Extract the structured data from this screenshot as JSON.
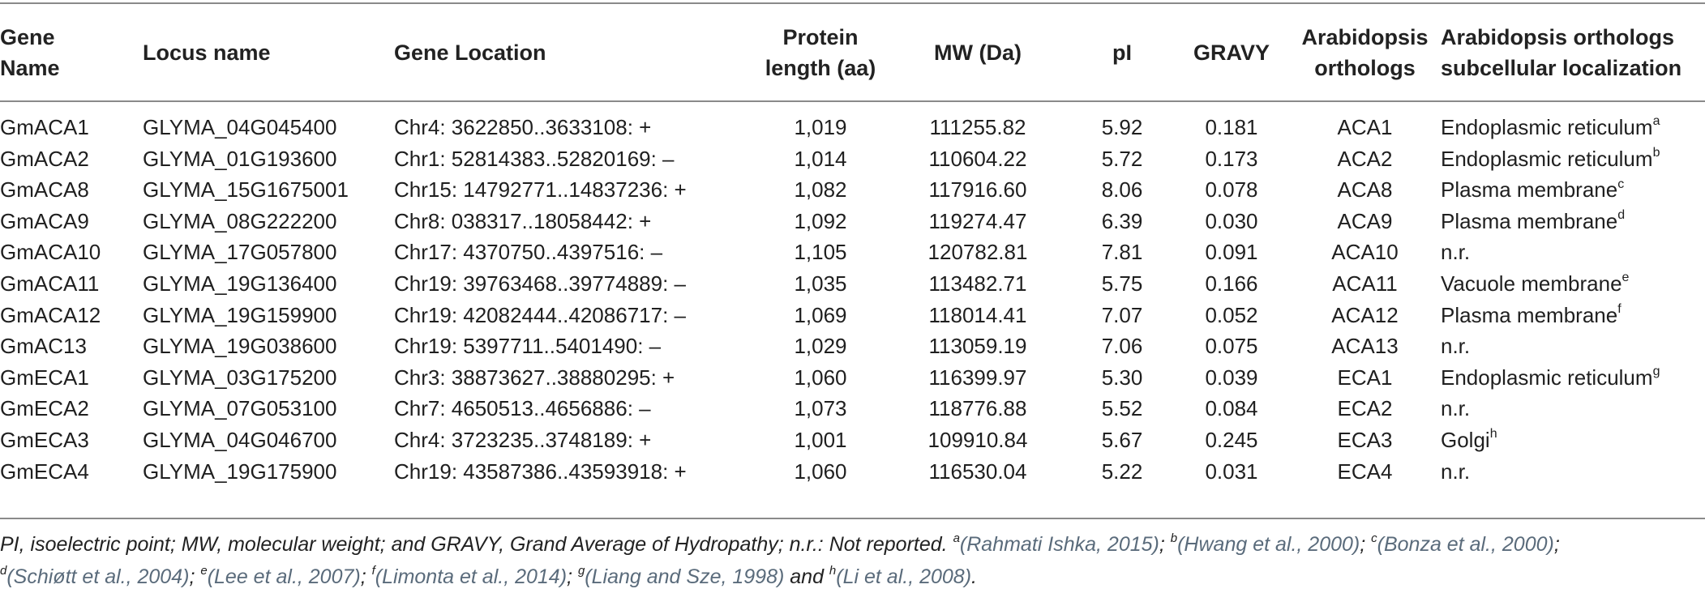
{
  "headers": {
    "gene_name": [
      "Gene",
      "Name"
    ],
    "locus": [
      "Locus name"
    ],
    "location": [
      "Gene Location"
    ],
    "length": [
      "Protein",
      "length (aa)"
    ],
    "mw": [
      "MW (Da)"
    ],
    "pi": [
      "pI"
    ],
    "gravy": [
      "GRAVY"
    ],
    "orthologs": [
      "Arabidopsis",
      "orthologs"
    ],
    "localization": [
      "Arabidopsis orthologs",
      "subcellular localization"
    ]
  },
  "rows": [
    {
      "gene": "GmACA1",
      "locus": "GLYMA_04G045400",
      "location": "Chr4: 3622850..3633108: +",
      "length": "1,019",
      "mw": "111255.82",
      "pi": "5.92",
      "gravy": "0.181",
      "ortholog": "ACA1",
      "localization": "Endoplasmic reticulum",
      "sup": "a"
    },
    {
      "gene": "GmACA2",
      "locus": "GLYMA_01G193600",
      "location": "Chr1: 52814383..52820169: –",
      "length": "1,014",
      "mw": "110604.22",
      "pi": "5.72",
      "gravy": "0.173",
      "ortholog": "ACA2",
      "localization": "Endoplasmic reticulum",
      "sup": "b"
    },
    {
      "gene": "GmACA8",
      "locus": "GLYMA_15G1675001",
      "location": "Chr15: 14792771..14837236: +",
      "length": "1,082",
      "mw": "117916.60",
      "pi": "8.06",
      "gravy": "0.078",
      "ortholog": "ACA8",
      "localization": "Plasma membrane",
      "sup": "c"
    },
    {
      "gene": "GmACA9",
      "locus": "GLYMA_08G222200",
      "location": "Chr8: 038317..18058442: +",
      "length": "1,092",
      "mw": "119274.47",
      "pi": "6.39",
      "gravy": "0.030",
      "ortholog": "ACA9",
      "localization": "Plasma membrane",
      "sup": "d"
    },
    {
      "gene": "GmACA10",
      "locus": "GLYMA_17G057800",
      "location": "Chr17: 4370750..4397516: –",
      "length": "1,105",
      "mw": "120782.81",
      "pi": "7.81",
      "gravy": "0.091",
      "ortholog": "ACA10",
      "localization": "n.r.",
      "sup": ""
    },
    {
      "gene": "GmACA11",
      "locus": "GLYMA_19G136400",
      "location": "Chr19: 39763468..39774889: –",
      "length": "1,035",
      "mw": "113482.71",
      "pi": "5.75",
      "gravy": "0.166",
      "ortholog": "ACA11",
      "localization": "Vacuole membrane",
      "sup": "e"
    },
    {
      "gene": "GmACA12",
      "locus": "GLYMA_19G159900",
      "location": "Chr19: 42082444..42086717: –",
      "length": "1,069",
      "mw": "118014.41",
      "pi": "7.07",
      "gravy": "0.052",
      "ortholog": "ACA12",
      "localization": "Plasma membrane",
      "sup": "f"
    },
    {
      "gene": "GmAC13",
      "locus": "GLYMA_19G038600",
      "location": "Chr19: 5397711..5401490: –",
      "length": "1,029",
      "mw": "113059.19",
      "pi": "7.06",
      "gravy": "0.075",
      "ortholog": "ACA13",
      "localization": "n.r.",
      "sup": ""
    },
    {
      "gene": "GmECA1",
      "locus": "GLYMA_03G175200",
      "location": "Chr3: 38873627..38880295: +",
      "length": "1,060",
      "mw": "116399.97",
      "pi": "5.30",
      "gravy": "0.039",
      "ortholog": "ECA1",
      "localization": "Endoplasmic reticulum",
      "sup": "g"
    },
    {
      "gene": "GmECA2",
      "locus": "GLYMA_07G053100",
      "location": "Chr7: 4650513..4656886: –",
      "length": "1,073",
      "mw": "118776.88",
      "pi": "5.52",
      "gravy": "0.084",
      "ortholog": "ECA2",
      "localization": "n.r.",
      "sup": ""
    },
    {
      "gene": "GmECA3",
      "locus": "GLYMA_04G046700",
      "location": "Chr4: 3723235..3748189: +",
      "length": "1,001",
      "mw": "109910.84",
      "pi": "5.67",
      "gravy": "0.245",
      "ortholog": "ECA3",
      "localization": "Golgi",
      "sup": "h"
    },
    {
      "gene": "GmECA4",
      "locus": "GLYMA_19G175900",
      "location": "Chr19: 43587386..43593918: +",
      "length": "1,060",
      "mw": "116530.04",
      "pi": "5.22",
      "gravy": "0.031",
      "ortholog": "ECA4",
      "localization": "n.r.",
      "sup": ""
    }
  ],
  "footnote": {
    "intro": "PI, isoelectric point; MW, molecular weight; and GRAVY, Grand Average of Hydropathy; n.r.: Not reported. ",
    "refs": [
      {
        "sup": "a",
        "text": "(Rahmati Ishka, 2015)",
        "after": "; "
      },
      {
        "sup": "b",
        "text": "(Hwang et al., 2000)",
        "after": "; "
      },
      {
        "sup": "c",
        "text": "(Bonza et al., 2000)",
        "after": ";",
        "break": true
      },
      {
        "sup": "d",
        "text": "(Schiøtt et al., 2004)",
        "after": "; "
      },
      {
        "sup": "e",
        "text": "(Lee et al., 2007)",
        "after": "; "
      },
      {
        "sup": "f",
        "text": "(Limonta et al., 2014)",
        "after": "; "
      },
      {
        "sup": "g",
        "text": "(Liang and Sze, 1998)",
        "after": " and "
      },
      {
        "sup": "h",
        "text": "(Li et al., 2008)",
        "after": "."
      }
    ]
  },
  "colors": {
    "rule": "#8a8a8a",
    "text": "#1f1f1f",
    "reference": "#5a6b7b"
  }
}
